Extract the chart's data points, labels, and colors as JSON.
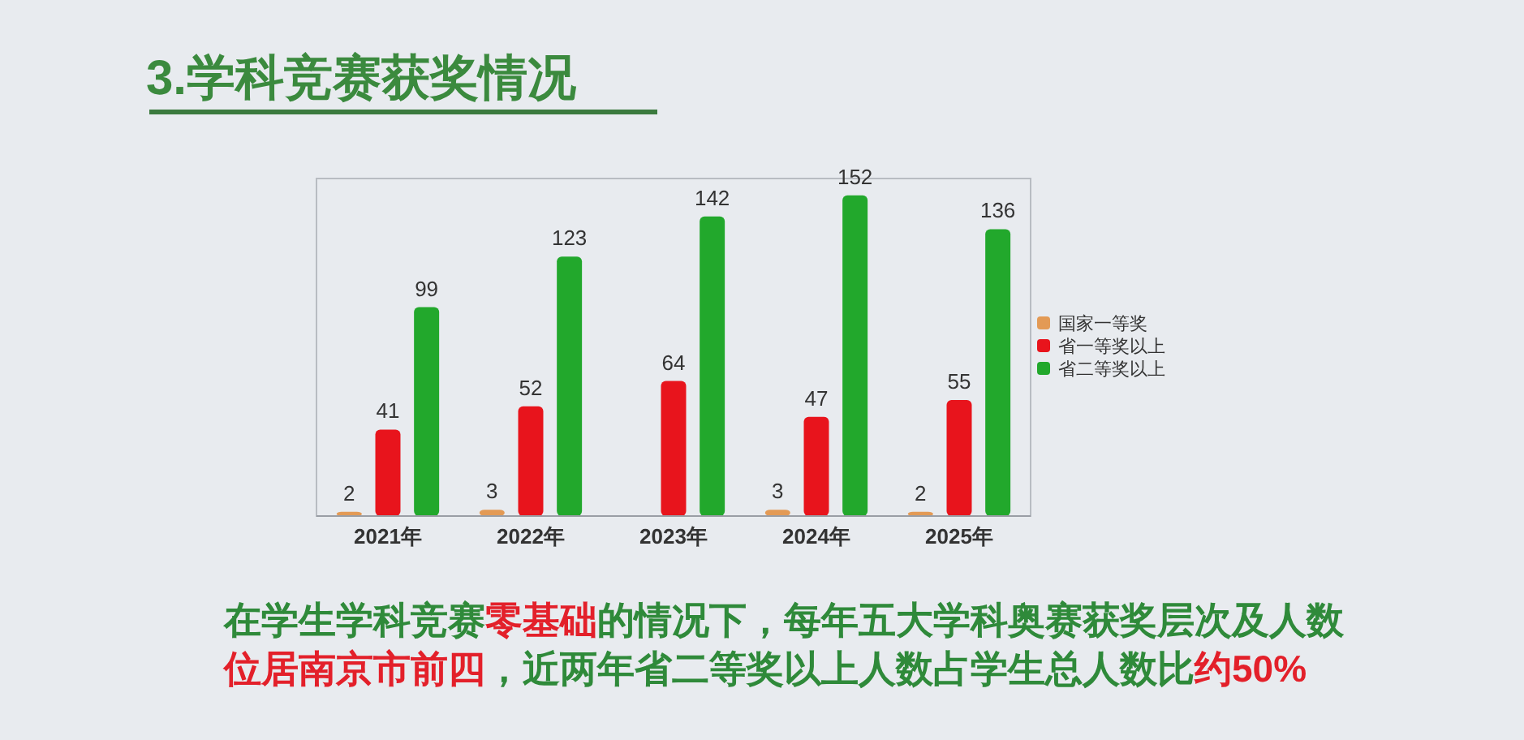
{
  "chart_data": {
    "type": "bar",
    "title": "3.学科竞赛获奖情况",
    "categories": [
      "2021年",
      "2022年",
      "2023年",
      "2024年",
      "2025年"
    ],
    "series": [
      {
        "name": "国家一等奖",
        "color": "#e39a55",
        "values": [
          2,
          3,
          null,
          3,
          2
        ]
      },
      {
        "name": "省一等奖以上",
        "color": "#e8141c",
        "values": [
          41,
          52,
          64,
          47,
          55
        ]
      },
      {
        "name": "省二等奖以上",
        "color": "#22a82c",
        "values": [
          99,
          123,
          142,
          152,
          136
        ]
      }
    ],
    "ylim": [
      0,
      160
    ],
    "tick_labels": "x",
    "data_labels": true,
    "legend": "right",
    "annotations": [
      "在学生学科竞赛",
      "零基础",
      "的情况下，每年五大学科奥赛获奖层次及人数",
      "位居南京市前四",
      "，近两年省二等奖以上人数占学生总人数比",
      "约50%"
    ]
  }
}
